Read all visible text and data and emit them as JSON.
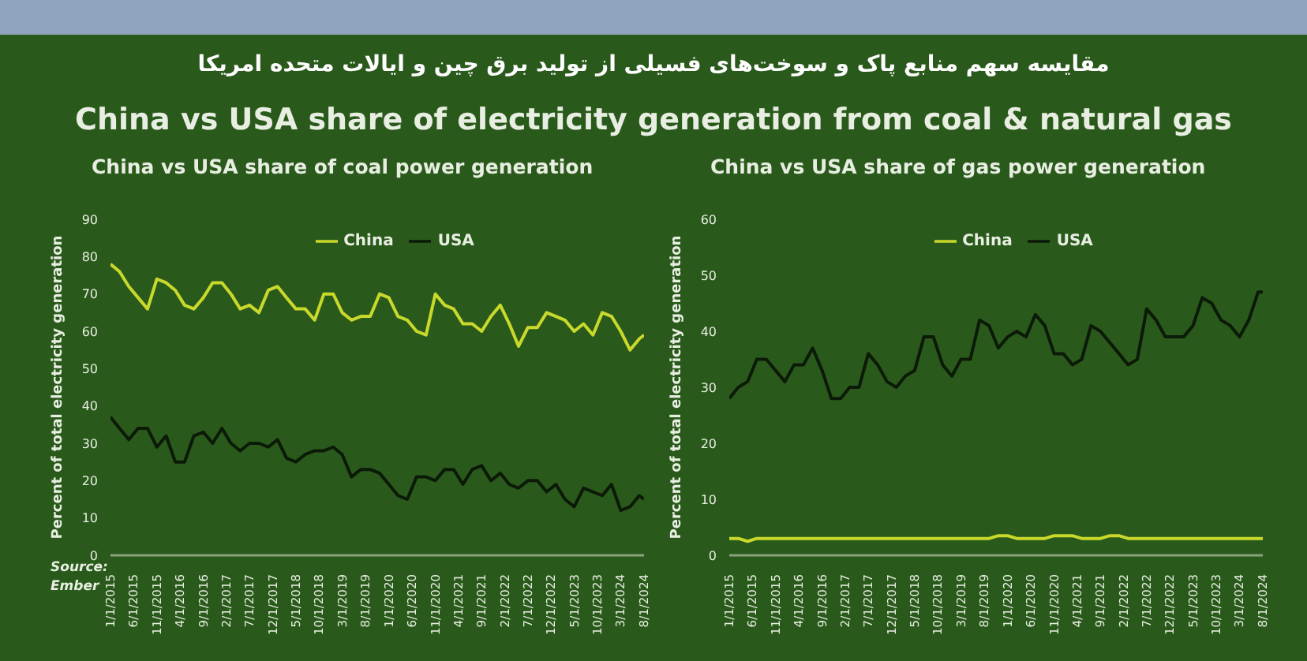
{
  "chart_data": [
    {
      "type": "line",
      "title": "China vs USA share of coal power generation",
      "ylabel": "Percent of total electricity generation",
      "annotations": [
        "مقایسه سهم منابع پاک و سوخت‌های فسیلی از تولید برق چین و ایالات متحده امریکا",
        "China vs USA share of electricity generation from coal & natural gas",
        "Source: Ember"
      ],
      "x": [
        "2015-01",
        "2015-03",
        "2015-05",
        "2015-07",
        "2015-09",
        "2015-11",
        "2016-01",
        "2016-03",
        "2016-05",
        "2016-07",
        "2016-09",
        "2016-11",
        "2017-01",
        "2017-03",
        "2017-05",
        "2017-07",
        "2017-09",
        "2017-11",
        "2018-01",
        "2018-03",
        "2018-05",
        "2018-07",
        "2018-09",
        "2018-11",
        "2019-01",
        "2019-03",
        "2019-05",
        "2019-07",
        "2019-09",
        "2019-11",
        "2020-01",
        "2020-03",
        "2020-05",
        "2020-07",
        "2020-09",
        "2020-11",
        "2021-01",
        "2021-03",
        "2021-05",
        "2021-07",
        "2021-09",
        "2021-11",
        "2022-01",
        "2022-03",
        "2022-05",
        "2022-07",
        "2022-09",
        "2022-11",
        "2023-01",
        "2023-03",
        "2023-05",
        "2023-07",
        "2023-09",
        "2023-11",
        "2024-01",
        "2024-03",
        "2024-05",
        "2024-07",
        "2024-08"
      ],
      "series": [
        {
          "name": "China",
          "color": "#c9d92c",
          "values": [
            78,
            76,
            72,
            69,
            66,
            74,
            73,
            71,
            67,
            66,
            69,
            73,
            73,
            70,
            66,
            67,
            65,
            71,
            72,
            69,
            66,
            66,
            63,
            70,
            70,
            65,
            63,
            64,
            64,
            70,
            69,
            64,
            63,
            60,
            59,
            70,
            67,
            66,
            62,
            62,
            60,
            64,
            67,
            62,
            56,
            61,
            61,
            65,
            64,
            63,
            60,
            62,
            59,
            65,
            64,
            60,
            55,
            58,
            59
          ]
        },
        {
          "name": "USA",
          "color": "#0c1a08",
          "values": [
            37,
            34,
            31,
            34,
            34,
            29,
            32,
            25,
            25,
            32,
            33,
            30,
            34,
            30,
            28,
            30,
            30,
            29,
            31,
            26,
            25,
            27,
            28,
            28,
            29,
            27,
            21,
            23,
            23,
            22,
            19,
            16,
            15,
            21,
            21,
            20,
            23,
            23,
            19,
            23,
            24,
            20,
            22,
            19,
            18,
            20,
            20,
            17,
            19,
            15,
            13,
            18,
            17,
            16,
            19,
            12,
            13,
            16,
            15
          ]
        }
      ],
      "xlim": [
        "2015-01",
        "2024-08"
      ],
      "xticks": [
        {
          "value": "2015-01",
          "label": "1/1/2015"
        },
        {
          "value": "2015-06",
          "label": "6/1/2015"
        },
        {
          "value": "2015-11",
          "label": "11/1/2015"
        },
        {
          "value": "2016-04",
          "label": "4/1/2016"
        },
        {
          "value": "2016-09",
          "label": "9/1/2016"
        },
        {
          "value": "2017-02",
          "label": "2/1/2017"
        },
        {
          "value": "2017-07",
          "label": "7/1/2017"
        },
        {
          "value": "2017-12",
          "label": "12/1/2017"
        },
        {
          "value": "2018-05",
          "label": "5/1/2018"
        },
        {
          "value": "2018-10",
          "label": "10/1/2018"
        },
        {
          "value": "2019-03",
          "label": "3/1/2019"
        },
        {
          "value": "2019-08",
          "label": "8/1/2019"
        },
        {
          "value": "2020-01",
          "label": "1/1/2020"
        },
        {
          "value": "2020-06",
          "label": "6/1/2020"
        },
        {
          "value": "2020-11",
          "label": "11/1/2020"
        },
        {
          "value": "2021-04",
          "label": "4/1/2021"
        },
        {
          "value": "2021-09",
          "label": "9/1/2021"
        },
        {
          "value": "2022-02",
          "label": "2/1/2022"
        },
        {
          "value": "2022-07",
          "label": "7/1/2022"
        },
        {
          "value": "2022-12",
          "label": "12/1/2022"
        },
        {
          "value": "2023-05",
          "label": "5/1/2023"
        },
        {
          "value": "2023-10",
          "label": "10/1/2023"
        },
        {
          "value": "2024-03",
          "label": "3/1/2024"
        },
        {
          "value": "2024-08",
          "label": "8/1/2024"
        }
      ],
      "ylim": [
        0,
        90
      ],
      "yticks": [
        0,
        10,
        20,
        30,
        40,
        50,
        60,
        70,
        80,
        90
      ],
      "grid": false,
      "legend": "top",
      "marker": "none",
      "line_style": "solid"
    },
    {
      "type": "line",
      "title": "China vs USA share of gas power generation",
      "ylabel": "Percent of total electricity generation",
      "x": [
        "2015-01",
        "2015-03",
        "2015-05",
        "2015-07",
        "2015-09",
        "2015-11",
        "2016-01",
        "2016-03",
        "2016-05",
        "2016-07",
        "2016-09",
        "2016-11",
        "2017-01",
        "2017-03",
        "2017-05",
        "2017-07",
        "2017-09",
        "2017-11",
        "2018-01",
        "2018-03",
        "2018-05",
        "2018-07",
        "2018-09",
        "2018-11",
        "2019-01",
        "2019-03",
        "2019-05",
        "2019-07",
        "2019-09",
        "2019-11",
        "2020-01",
        "2020-03",
        "2020-05",
        "2020-07",
        "2020-09",
        "2020-11",
        "2021-01",
        "2021-03",
        "2021-05",
        "2021-07",
        "2021-09",
        "2021-11",
        "2022-01",
        "2022-03",
        "2022-05",
        "2022-07",
        "2022-09",
        "2022-11",
        "2023-01",
        "2023-03",
        "2023-05",
        "2023-07",
        "2023-09",
        "2023-11",
        "2024-01",
        "2024-03",
        "2024-05",
        "2024-07",
        "2024-08"
      ],
      "series": [
        {
          "name": "China",
          "color": "#c9d92c",
          "values": [
            3,
            3,
            2.5,
            3,
            3,
            3,
            3,
            3,
            3,
            3,
            3,
            3,
            3,
            3,
            3,
            3,
            3,
            3,
            3,
            3,
            3,
            3,
            3,
            3,
            3,
            3,
            3,
            3,
            3,
            3.5,
            3.5,
            3,
            3,
            3,
            3,
            3.5,
            3.5,
            3.5,
            3,
            3,
            3,
            3.5,
            3.5,
            3,
            3,
            3,
            3,
            3,
            3,
            3,
            3,
            3,
            3,
            3,
            3,
            3,
            3,
            3,
            3
          ]
        },
        {
          "name": "USA",
          "color": "#0c1a08",
          "values": [
            28,
            30,
            31,
            35,
            35,
            33,
            31,
            34,
            34,
            37,
            33,
            28,
            28,
            30,
            30,
            36,
            34,
            31,
            30,
            32,
            33,
            39,
            39,
            34,
            32,
            35,
            35,
            42,
            41,
            37,
            39,
            40,
            39,
            43,
            41,
            36,
            36,
            34,
            35,
            41,
            40,
            38,
            36,
            34,
            35,
            44,
            42,
            39,
            39,
            39,
            41,
            46,
            45,
            42,
            41,
            39,
            42,
            47,
            47
          ]
        }
      ],
      "xlim": [
        "2015-01",
        "2024-08"
      ],
      "xticks": [
        {
          "value": "2015-01",
          "label": "1/1/2015"
        },
        {
          "value": "2015-06",
          "label": "6/1/2015"
        },
        {
          "value": "2015-11",
          "label": "11/1/2015"
        },
        {
          "value": "2016-04",
          "label": "4/1/2016"
        },
        {
          "value": "2016-09",
          "label": "9/1/2016"
        },
        {
          "value": "2017-02",
          "label": "2/1/2017"
        },
        {
          "value": "2017-07",
          "label": "7/1/2017"
        },
        {
          "value": "2017-12",
          "label": "12/1/2017"
        },
        {
          "value": "2018-05",
          "label": "5/1/2018"
        },
        {
          "value": "2018-10",
          "label": "10/1/2018"
        },
        {
          "value": "2019-03",
          "label": "3/1/2019"
        },
        {
          "value": "2019-08",
          "label": "8/1/2019"
        },
        {
          "value": "2020-01",
          "label": "1/1/2020"
        },
        {
          "value": "2020-06",
          "label": "6/1/2020"
        },
        {
          "value": "2020-11",
          "label": "11/1/2020"
        },
        {
          "value": "2021-04",
          "label": "4/1/2021"
        },
        {
          "value": "2021-09",
          "label": "9/1/2021"
        },
        {
          "value": "2022-02",
          "label": "2/1/2022"
        },
        {
          "value": "2022-07",
          "label": "7/1/2022"
        },
        {
          "value": "2022-12",
          "label": "12/1/2022"
        },
        {
          "value": "2023-05",
          "label": "5/1/2023"
        },
        {
          "value": "2023-10",
          "label": "10/1/2023"
        },
        {
          "value": "2024-03",
          "label": "3/1/2024"
        },
        {
          "value": "2024-08",
          "label": "8/1/2024"
        }
      ],
      "ylim": [
        0,
        60
      ],
      "yticks": [
        0,
        10,
        20,
        30,
        40,
        50,
        60
      ],
      "grid": false,
      "legend": "top",
      "marker": "none",
      "line_style": "solid"
    }
  ]
}
